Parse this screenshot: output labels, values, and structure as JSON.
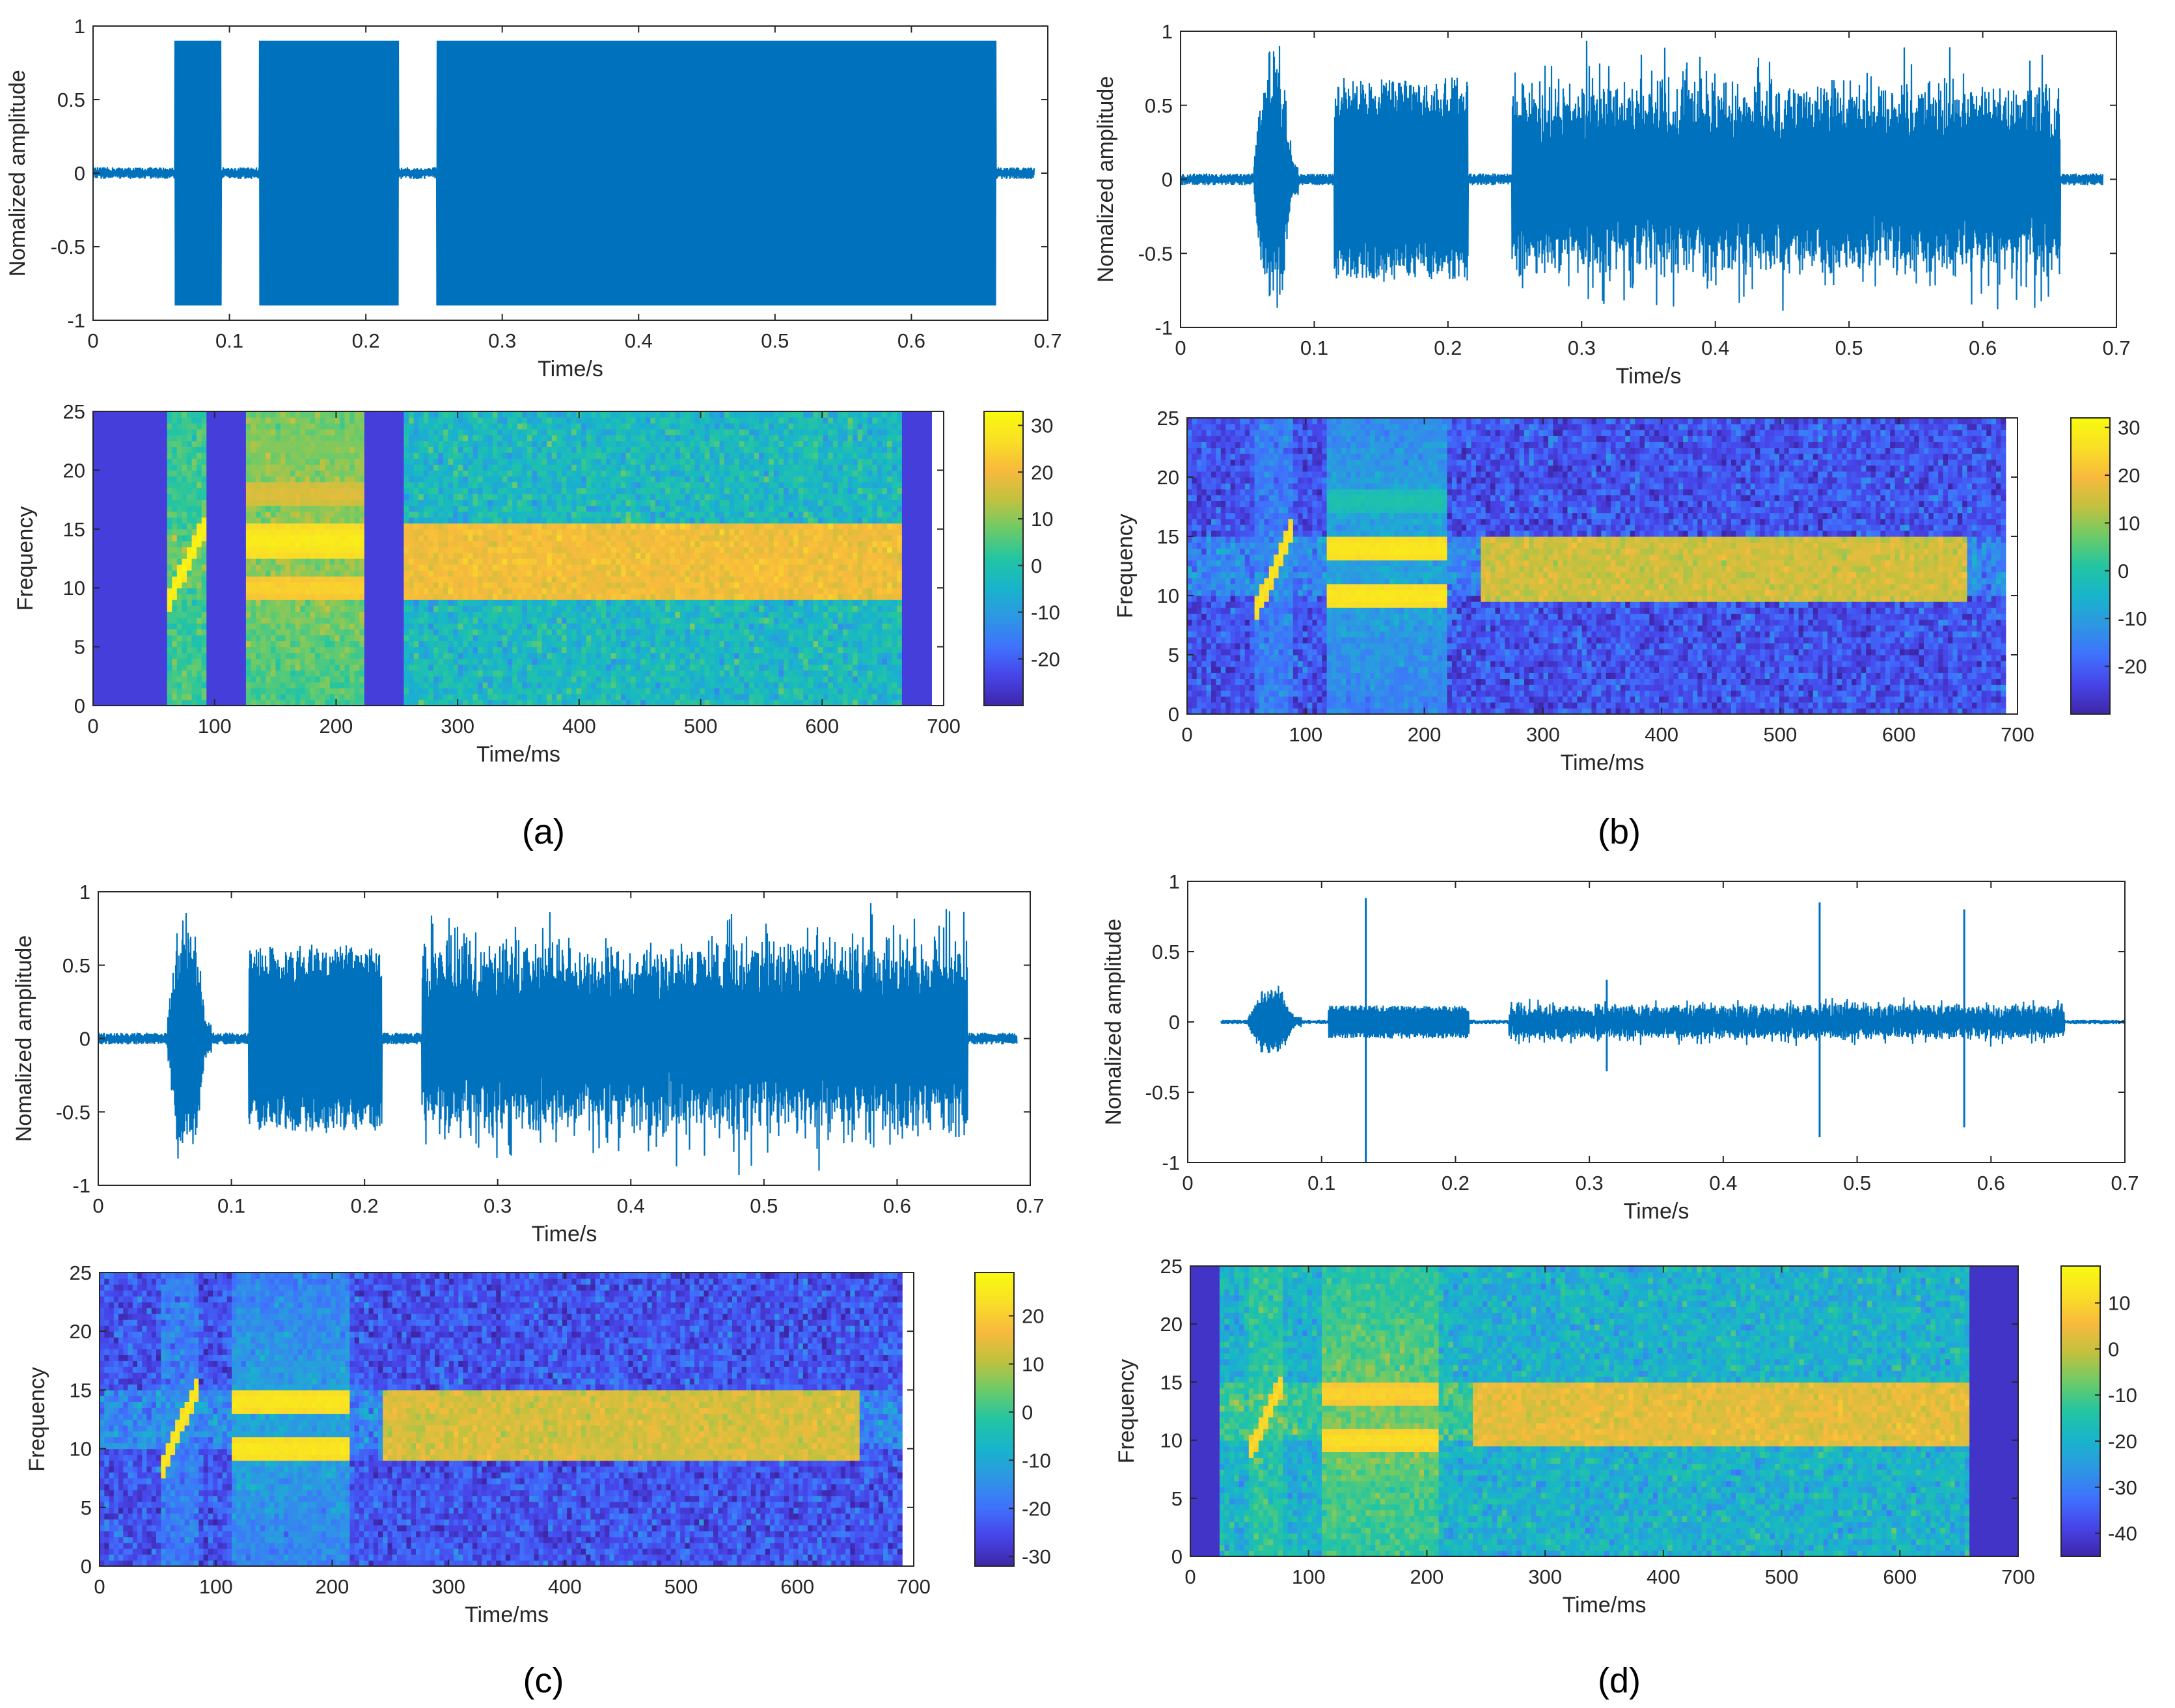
{
  "captions": {
    "a": "(a)",
    "b": "(b)",
    "c": "(c)",
    "d": "(d)"
  },
  "colors": {
    "signal": "#0072BD",
    "axis": "#262626",
    "parula": [
      "#3E26A8",
      "#4744E8",
      "#3F72FD",
      "#2D97E3",
      "#18B4CB",
      "#23C5A2",
      "#6CCB68",
      "#C1C13E",
      "#F8BA3D",
      "#F9DF25",
      "#F9FB0E"
    ]
  },
  "chart_data": [
    {
      "panel": "a-waveform",
      "type": "line",
      "xlabel": "Time/s",
      "ylabel": "Nomalized amplitude",
      "xlim": [
        0,
        0.7
      ],
      "ylim": [
        -1,
        1
      ],
      "xticks": [
        "0",
        "0.1",
        "0.2",
        "0.3",
        "0.4",
        "0.5",
        "0.6",
        "0.7"
      ],
      "yticks": [
        "1",
        "0.5",
        "0",
        "-0.5",
        "-1"
      ],
      "noise_level": 0.04,
      "segments": [
        {
          "start": 0.06,
          "end": 0.094,
          "amplitude": 1.0,
          "shape": "clipped"
        },
        {
          "start": 0.122,
          "end": 0.224,
          "amplitude": 1.0,
          "shape": "clipped"
        },
        {
          "start": 0.252,
          "end": 0.662,
          "amplitude": 1.0,
          "shape": "clipped"
        }
      ],
      "signal_span": [
        0.0,
        0.69
      ]
    },
    {
      "panel": "a-spectrogram",
      "type": "heatmap",
      "xlabel": "Time/ms",
      "ylabel": "Frequency",
      "xlim": [
        0,
        700
      ],
      "ylim": [
        0,
        25
      ],
      "xticks": [
        "0",
        "100",
        "200",
        "300",
        "400",
        "500",
        "600",
        "700"
      ],
      "yticks": [
        "25",
        "20",
        "15",
        "10",
        "5",
        "0"
      ],
      "colorbar": {
        "min": -30,
        "max": 33,
        "ticks": [
          "30",
          "20",
          "10",
          "0",
          "-10",
          "-20"
        ]
      },
      "data_span": [
        0,
        690
      ],
      "gaps": [
        [
          0,
          60,
          -25
        ],
        [
          95,
          124,
          -25
        ],
        [
          225,
          254,
          -25
        ],
        [
          665,
          690,
          -25
        ]
      ],
      "noise": {
        "start": 60,
        "end": 665,
        "level": -3
      },
      "chirp": {
        "t0": 60,
        "t1": 93,
        "f0": 8.5,
        "f1": 15.5,
        "level": 32
      },
      "tones": [
        {
          "start": 122,
          "end": 222,
          "freq": 14,
          "width": 1.3,
          "level": 30
        },
        {
          "start": 122,
          "end": 222,
          "freq": 10,
          "width": 1.0,
          "level": 25
        },
        {
          "start": 122,
          "end": 222,
          "freq": 18,
          "width": 0.8,
          "level": 18
        },
        {
          "start": 122,
          "end": 222,
          "freq": 22,
          "width": 0.8,
          "level": 10
        }
      ],
      "bands": [
        {
          "start": 254,
          "end": 664,
          "f_low": 9,
          "f_high": 15.5,
          "level": 20
        }
      ]
    },
    {
      "panel": "b-waveform",
      "type": "line",
      "xlabel": "Time/s",
      "ylabel": "Nomalized amplitude",
      "xlim": [
        0,
        0.7
      ],
      "ylim": [
        -1,
        1
      ],
      "xticks": [
        "0",
        "0.1",
        "0.2",
        "0.3",
        "0.4",
        "0.5",
        "0.6",
        "0.7"
      ],
      "yticks": [
        "1",
        "0.5",
        "0",
        "-0.5",
        "-1"
      ],
      "noise_level": 0.04,
      "segments": [
        {
          "start": 0.055,
          "end": 0.088,
          "amplitude": 0.95,
          "shape": "burst"
        },
        {
          "start": 0.115,
          "end": 0.215,
          "amplitude": 0.7,
          "shape": "flat"
        },
        {
          "start": 0.248,
          "end": 0.658,
          "amplitude": 0.95,
          "shape": "noise"
        }
      ],
      "signal_span": [
        0.0,
        0.69
      ]
    },
    {
      "panel": "b-spectrogram",
      "type": "heatmap",
      "xlabel": "Time/ms",
      "ylabel": "Frequency",
      "xlim": [
        0,
        700
      ],
      "ylim": [
        0,
        25
      ],
      "xticks": [
        "0",
        "100",
        "200",
        "300",
        "400",
        "500",
        "600",
        "700"
      ],
      "yticks": [
        "25",
        "20",
        "15",
        "10",
        "5",
        "0"
      ],
      "colorbar": {
        "min": -30,
        "max": 32,
        "ticks": [
          "30",
          "20",
          "10",
          "0",
          "-10",
          "-20"
        ]
      },
      "data_span": [
        0,
        690
      ],
      "gaps": [],
      "noise": {
        "start": 0,
        "end": 690,
        "level": -22
      },
      "chirp": {
        "t0": 55,
        "t1": 88,
        "f0": 8,
        "f1": 15.5,
        "level": 28
      },
      "tones": [
        {
          "start": 118,
          "end": 218,
          "freq": 14,
          "width": 1.2,
          "level": 28
        },
        {
          "start": 118,
          "end": 218,
          "freq": 10,
          "width": 1.2,
          "level": 28
        },
        {
          "start": 118,
          "end": 218,
          "freq": 18,
          "width": 0.8,
          "level": 0
        }
      ],
      "bands": [
        {
          "start": 248,
          "end": 658,
          "f_low": 9.5,
          "f_high": 15,
          "level": 15
        }
      ]
    },
    {
      "panel": "c-waveform",
      "type": "line",
      "xlabel": "Time/s",
      "ylabel": "Nomalized amplitude",
      "xlim": [
        0,
        0.7
      ],
      "ylim": [
        -1,
        1
      ],
      "xticks": [
        "0",
        "0.1",
        "0.2",
        "0.3",
        "0.4",
        "0.5",
        "0.6",
        "0.7"
      ],
      "yticks": [
        "1",
        "0.5",
        "0",
        "-0.5",
        "-1"
      ],
      "noise_level": 0.04,
      "segments": [
        {
          "start": 0.052,
          "end": 0.085,
          "amplitude": 0.95,
          "shape": "burst"
        },
        {
          "start": 0.113,
          "end": 0.213,
          "amplitude": 0.65,
          "shape": "flat"
        },
        {
          "start": 0.243,
          "end": 0.653,
          "amplitude": 0.95,
          "shape": "noise"
        }
      ],
      "signal_span": [
        0.0,
        0.69
      ]
    },
    {
      "panel": "c-spectrogram",
      "type": "heatmap",
      "xlabel": "Time/ms",
      "ylabel": "Frequency",
      "xlim": [
        0,
        700
      ],
      "ylim": [
        0,
        25
      ],
      "xticks": [
        "0",
        "100",
        "200",
        "300",
        "400",
        "500",
        "600",
        "700"
      ],
      "yticks": [
        "25",
        "20",
        "15",
        "10",
        "5",
        "0"
      ],
      "colorbar": {
        "min": -32,
        "max": 29,
        "ticks": [
          "20",
          "10",
          "0",
          "-10",
          "-20",
          "-30"
        ]
      },
      "data_span": [
        0,
        690
      ],
      "gaps": [],
      "noise": {
        "start": 0,
        "end": 690,
        "level": -24
      },
      "chirp": {
        "t0": 52,
        "t1": 85,
        "f0": 8,
        "f1": 15.5,
        "level": 26
      },
      "tones": [
        {
          "start": 115,
          "end": 215,
          "freq": 14,
          "width": 1.2,
          "level": 25
        },
        {
          "start": 115,
          "end": 215,
          "freq": 10,
          "width": 1.2,
          "level": 25
        }
      ],
      "bands": [
        {
          "start": 243,
          "end": 653,
          "f_low": 9,
          "f_high": 15,
          "level": 13
        }
      ]
    },
    {
      "panel": "d-waveform",
      "type": "line",
      "xlabel": "Time/s",
      "ylabel": "Nomalized amplitude",
      "xlim": [
        0,
        0.7
      ],
      "ylim": [
        -1,
        1
      ],
      "xticks": [
        "0",
        "0.1",
        "0.2",
        "0.3",
        "0.4",
        "0.5",
        "0.6",
        "0.7"
      ],
      "yticks": [
        "1",
        "0.5",
        "0",
        "-0.5",
        "-1"
      ],
      "noise_level": 0.015,
      "segments": [
        {
          "start": 0.045,
          "end": 0.085,
          "amplitude": 0.28,
          "shape": "burst"
        },
        {
          "start": 0.105,
          "end": 0.21,
          "amplitude": 0.12,
          "shape": "flat"
        },
        {
          "start": 0.24,
          "end": 0.655,
          "amplitude": 0.18,
          "shape": "noise"
        }
      ],
      "spikes": [
        {
          "t": 0.133,
          "low": -1.0,
          "high": 0.88
        },
        {
          "t": 0.313,
          "low": -0.35,
          "high": 0.3
        },
        {
          "t": 0.472,
          "low": -0.82,
          "high": 0.85
        },
        {
          "t": 0.58,
          "low": -0.75,
          "high": 0.8
        }
      ],
      "signal_span": [
        0.025,
        0.7
      ]
    },
    {
      "panel": "d-spectrogram",
      "type": "heatmap",
      "xlabel": "Time/ms",
      "ylabel": "Frequency",
      "xlim": [
        0,
        700
      ],
      "ylim": [
        0,
        25
      ],
      "xticks": [
        "0",
        "100",
        "200",
        "300",
        "400",
        "500",
        "600",
        "700"
      ],
      "yticks": [
        "25",
        "20",
        "15",
        "10",
        "5",
        "0"
      ],
      "colorbar": {
        "min": -45,
        "max": 18,
        "ticks": [
          "10",
          "0",
          "-10",
          "-20",
          "-30",
          "-40"
        ]
      },
      "data_span": [
        0,
        700
      ],
      "gaps": [
        [
          0,
          25,
          -42
        ],
        [
          660,
          700,
          -42
        ]
      ],
      "noise": {
        "start": 25,
        "end": 660,
        "level": -20
      },
      "chirp": {
        "t0": 48,
        "t1": 80,
        "f0": 8.5,
        "f1": 15.5,
        "level": 12
      },
      "tones": [
        {
          "start": 110,
          "end": 210,
          "freq": 14,
          "width": 1.2,
          "level": 10
        },
        {
          "start": 110,
          "end": 210,
          "freq": 10,
          "width": 1.2,
          "level": 12
        }
      ],
      "bands": [
        {
          "start": 240,
          "end": 658,
          "f_low": 9.5,
          "f_high": 15,
          "level": 3
        }
      ]
    }
  ]
}
